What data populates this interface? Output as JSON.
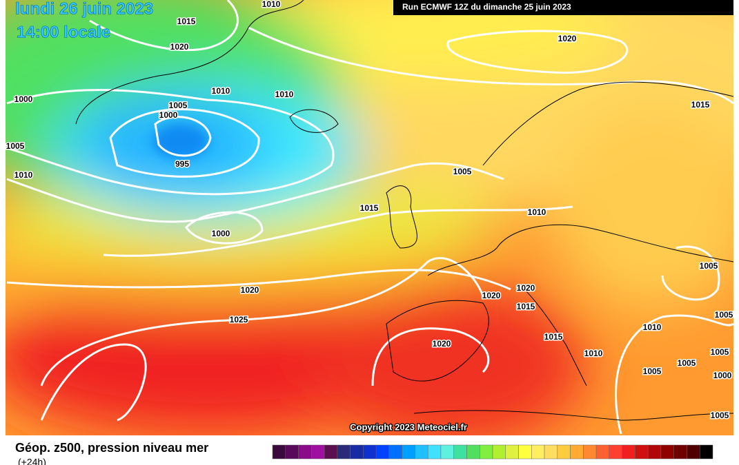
{
  "header": {
    "date": "lundi 26 juin 2023",
    "time": "14:00 locale",
    "run": "Run ECMWF 12Z du dimanche 25 juin 2023"
  },
  "isobar_labels": [
    "1010",
    "1015",
    "1020",
    "1020",
    "1010",
    "1010",
    "1000",
    "1005",
    "1000",
    "1005",
    "995",
    "1010",
    "1005",
    "1015",
    "1010",
    "1000",
    "1015",
    "1020",
    "1025",
    "1020",
    "1020",
    "1015",
    "1005",
    "1005",
    "1010",
    "1015",
    "1020",
    "1010",
    "1005",
    "1005",
    "1005",
    "1000",
    "1005"
  ],
  "copyright": "Copyright 2023 Meteociel.fr",
  "footer": {
    "title": "Géop. z500, pression niveau mer",
    "lead": "(+24h)"
  },
  "legend_colors": [
    "#3a0a3a",
    "#5a0a5a",
    "#8a0a8a",
    "#a010a0",
    "#5a1050",
    "#2a2a7a",
    "#1a2aa0",
    "#1030d0",
    "#0040ff",
    "#0070ff",
    "#00a0ff",
    "#20c0ff",
    "#40e0ff",
    "#60f0e0",
    "#40e0a0",
    "#50e060",
    "#80f040",
    "#b0f030",
    "#e0f040",
    "#ffff40",
    "#ffee60",
    "#ffdd60",
    "#ffcc40",
    "#ffaa30",
    "#ff8830",
    "#ff6030",
    "#ff4030",
    "#f02020",
    "#d01010",
    "#b00808",
    "#900000",
    "#700000",
    "#500000",
    "#000000"
  ]
}
